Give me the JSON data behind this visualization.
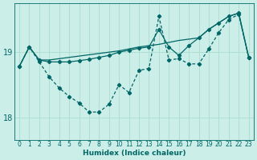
{
  "xlabel": "Humidex (Indice chaleur)",
  "bg_color": "#cceee8",
  "grid_color": "#aaddcc",
  "line_color": "#006666",
  "xlim": [
    -0.5,
    23.5
  ],
  "ylim": [
    17.65,
    19.75
  ],
  "yticks": [
    18,
    19
  ],
  "xticks": [
    0,
    1,
    2,
    3,
    4,
    5,
    6,
    7,
    8,
    9,
    10,
    11,
    12,
    13,
    14,
    15,
    16,
    17,
    18,
    19,
    20,
    21,
    22,
    23
  ],
  "line1_x": [
    0,
    1,
    2,
    3,
    4,
    5,
    6,
    7,
    8,
    9,
    10,
    11,
    12,
    13,
    14,
    15,
    16,
    17,
    18,
    19,
    20,
    21,
    22,
    23
  ],
  "line1_y": [
    18.78,
    19.08,
    18.88,
    18.88,
    18.9,
    18.92,
    18.94,
    18.96,
    18.98,
    19.0,
    19.02,
    19.05,
    19.08,
    19.1,
    19.12,
    19.15,
    19.18,
    19.2,
    19.22,
    19.35,
    19.45,
    19.55,
    19.6,
    18.92
  ],
  "line2_x": [
    0,
    1,
    2,
    3,
    4,
    5,
    6,
    7,
    8,
    9,
    10,
    11,
    12,
    13,
    14,
    15,
    16,
    17,
    18,
    19,
    20,
    21,
    22,
    23
  ],
  "line2_y": [
    18.78,
    19.08,
    18.88,
    18.85,
    18.85,
    18.85,
    18.87,
    18.89,
    18.92,
    18.95,
    19.0,
    19.03,
    19.06,
    19.08,
    19.35,
    19.08,
    18.95,
    19.1,
    19.22,
    19.35,
    19.45,
    19.55,
    19.6,
    18.92
  ],
  "line3_x": [
    0,
    1,
    2,
    3,
    4,
    5,
    6,
    7,
    8,
    9,
    10,
    11,
    12,
    13,
    14,
    15,
    16,
    17,
    18,
    19,
    20,
    21,
    22,
    23
  ],
  "line3_y": [
    18.78,
    19.08,
    18.85,
    18.62,
    18.45,
    18.32,
    18.22,
    18.08,
    18.08,
    18.2,
    18.5,
    18.38,
    18.72,
    18.75,
    19.55,
    18.88,
    18.9,
    18.82,
    18.82,
    19.05,
    19.3,
    19.5,
    19.58,
    18.92
  ]
}
